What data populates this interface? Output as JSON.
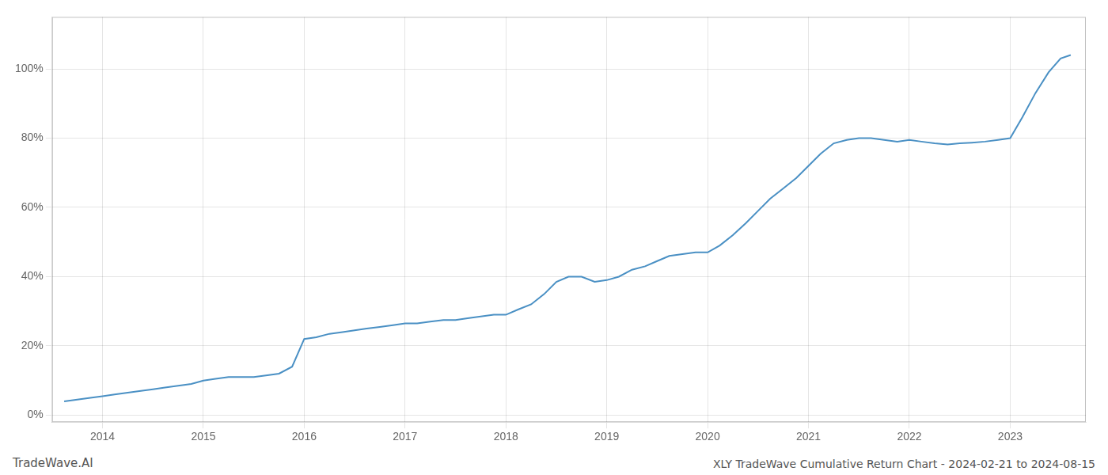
{
  "chart_data": {
    "type": "line",
    "title": "XLY TradeWave Cumulative Return Chart - 2024-02-21 to 2024-08-15",
    "annotations": [
      "TradeWave.AI"
    ],
    "color": "#4a90c4",
    "grid": true,
    "x": [
      2013.62,
      2013.75,
      2013.88,
      2014.0,
      2014.12,
      2014.25,
      2014.38,
      2014.5,
      2014.62,
      2014.75,
      2014.88,
      2015.0,
      2015.12,
      2015.25,
      2015.38,
      2015.5,
      2015.62,
      2015.75,
      2015.88,
      2016.0,
      2016.12,
      2016.25,
      2016.38,
      2016.5,
      2016.62,
      2016.75,
      2016.88,
      2017.0,
      2017.12,
      2017.25,
      2017.38,
      2017.5,
      2017.62,
      2017.75,
      2017.88,
      2018.0,
      2018.12,
      2018.25,
      2018.38,
      2018.5,
      2018.62,
      2018.75,
      2018.88,
      2019.0,
      2019.12,
      2019.25,
      2019.38,
      2019.5,
      2019.62,
      2019.75,
      2019.88,
      2020.0,
      2020.12,
      2020.25,
      2020.38,
      2020.5,
      2020.62,
      2020.75,
      2020.88,
      2021.0,
      2021.12,
      2021.25,
      2021.38,
      2021.5,
      2021.62,
      2021.75,
      2021.88,
      2022.0,
      2022.12,
      2022.25,
      2022.38,
      2022.5,
      2022.62,
      2022.75,
      2022.88,
      2023.0,
      2023.12,
      2023.25,
      2023.38,
      2023.5,
      2023.6
    ],
    "values": [
      0.04,
      0.045,
      0.05,
      0.055,
      0.06,
      0.065,
      0.07,
      0.075,
      0.08,
      0.085,
      0.09,
      0.1,
      0.105,
      0.11,
      0.11,
      0.11,
      0.115,
      0.12,
      0.14,
      0.22,
      0.225,
      0.235,
      0.24,
      0.245,
      0.25,
      0.255,
      0.26,
      0.265,
      0.265,
      0.27,
      0.275,
      0.275,
      0.28,
      0.285,
      0.29,
      0.29,
      0.305,
      0.32,
      0.35,
      0.385,
      0.4,
      0.4,
      0.385,
      0.39,
      0.4,
      0.42,
      0.43,
      0.445,
      0.46,
      0.465,
      0.47,
      0.47,
      0.49,
      0.52,
      0.555,
      0.59,
      0.625,
      0.655,
      0.685,
      0.72,
      0.755,
      0.785,
      0.795,
      0.8,
      0.8,
      0.795,
      0.79,
      0.795,
      0.79,
      0.785,
      0.782,
      0.785,
      0.787,
      0.79,
      0.795,
      0.8,
      0.86,
      0.93,
      0.99,
      1.03,
      1.04
    ],
    "xlim": [
      2013.5,
      2023.75
    ],
    "xticks": [
      2014,
      2015,
      2016,
      2017,
      2018,
      2019,
      2020,
      2021,
      2022,
      2023
    ],
    "ylim": [
      -0.02,
      1.15
    ],
    "yticks": [
      {
        "value": 0.0,
        "label": "0%"
      },
      {
        "value": 0.2,
        "label": "20%"
      },
      {
        "value": 0.4,
        "label": "40%"
      },
      {
        "value": 0.6,
        "label": "60%"
      },
      {
        "value": 0.8,
        "label": "80%"
      },
      {
        "value": 1.0,
        "label": "100%"
      }
    ]
  }
}
